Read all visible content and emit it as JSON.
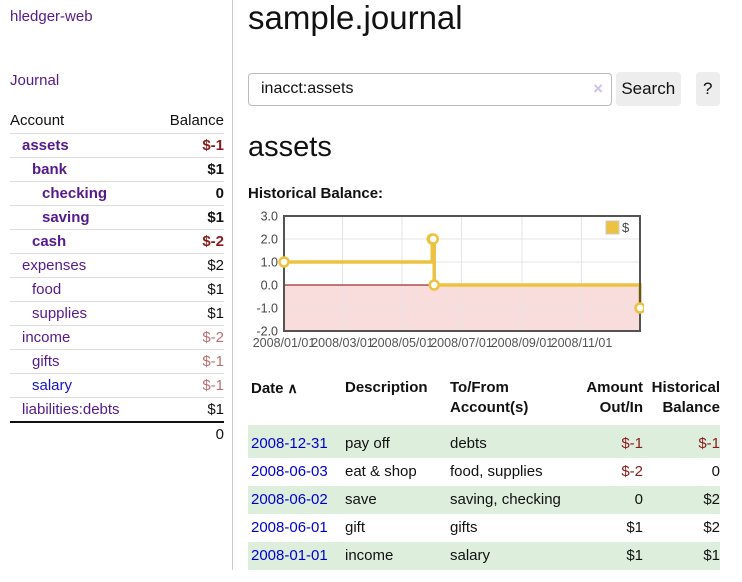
{
  "colors": {
    "link_purple": "#551A8B",
    "link_blue": "#1414CC",
    "negative_strong": "#8B1A1A",
    "negative_soft": "#B87272",
    "date_link_blue": "#0000CC",
    "row_stripe_green": "#DDEEDD",
    "chart_line_gold": "#EDC240",
    "chart_negative_region": "#F9DCDC",
    "chart_zero_line": "#800000",
    "chart_border": "#545454"
  },
  "sidebar": {
    "app_title": "hledger-web",
    "journal_link": "Journal",
    "accounts_table": {
      "headers": {
        "account": "Account",
        "balance": "Balance"
      },
      "rows": [
        {
          "name": "assets",
          "balance": "$-1"
        },
        {
          "name": "bank",
          "balance": "$1"
        },
        {
          "name": "checking",
          "balance": "0"
        },
        {
          "name": "saving",
          "balance": "$1"
        },
        {
          "name": "cash",
          "balance": "$-2"
        },
        {
          "name": "expenses",
          "balance": "$2"
        },
        {
          "name": "food",
          "balance": "$1"
        },
        {
          "name": "supplies",
          "balance": "$1"
        },
        {
          "name": "income",
          "balance": "$-2"
        },
        {
          "name": "gifts",
          "balance": "$-1"
        },
        {
          "name": "salary",
          "balance": "$-1"
        },
        {
          "name": "liabilities:debts",
          "balance": "$1"
        }
      ],
      "total": "0"
    }
  },
  "main": {
    "title": "sample.journal",
    "search": {
      "value": "inacct:assets",
      "clear_icon": "×",
      "search_button": "Search",
      "help_button": "?"
    },
    "account_heading": "assets",
    "chart_label": "Historical Balance:",
    "register": {
      "sort_icon": "∧",
      "headers": {
        "date": "Date",
        "description": "Description",
        "accounts": "To/From Account(s)",
        "amount": "Amount Out/In",
        "balance": "Historical Balance"
      },
      "rows": [
        {
          "date": "2008-12-31",
          "description": "pay off",
          "accounts": "debts",
          "amount": "$-1",
          "balance": "$-1"
        },
        {
          "date": "2008-06-03",
          "description": "eat & shop",
          "accounts": "food, supplies",
          "amount": "$-2",
          "balance": "0"
        },
        {
          "date": "2008-06-02",
          "description": "save",
          "accounts": "saving, checking",
          "amount": "0",
          "balance": "$2"
        },
        {
          "date": "2008-06-01",
          "description": "gift",
          "accounts": "gifts",
          "amount": "$1",
          "balance": "$2"
        },
        {
          "date": "2008-01-01",
          "description": "income",
          "accounts": "salary",
          "amount": "$1",
          "balance": "$1"
        }
      ]
    }
  },
  "chart_data": {
    "type": "line",
    "title": "Historical Balance",
    "step": true,
    "x_range": [
      "2008-01-01",
      "2008-12-31"
    ],
    "ylim": [
      -2,
      3
    ],
    "y_ticks": [
      "3.0",
      "2.0",
      "1.0",
      "0.0",
      "-1.0",
      "-2.0"
    ],
    "x_ticks": [
      "2008/01/01",
      "2008/03/01",
      "2008/05/01",
      "2008/07/01",
      "2008/09/01",
      "2008/11/01"
    ],
    "series": [
      {
        "name": "$",
        "color": "#EDC240",
        "points": [
          [
            "2008-01-01",
            1
          ],
          [
            "2008-06-01",
            2
          ],
          [
            "2008-06-02",
            2
          ],
          [
            "2008-06-03",
            0
          ],
          [
            "2008-12-31",
            -1
          ]
        ]
      }
    ],
    "legend": {
      "label": "$",
      "position": "top-right"
    },
    "grid": true,
    "negative_region_color": "#F9DCDC",
    "zero_line_color": "#800000"
  }
}
